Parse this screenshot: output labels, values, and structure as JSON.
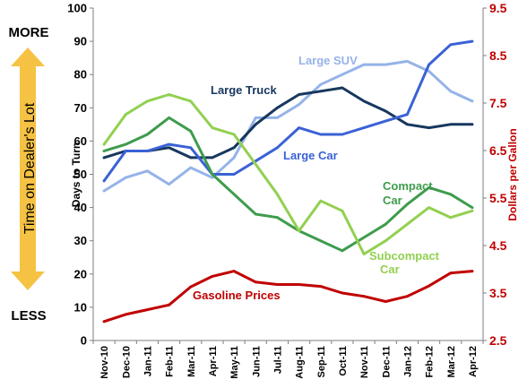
{
  "chart_data": {
    "type": "line",
    "categories": [
      "Nov-10",
      "Dec-10",
      "Jan-11",
      "Feb-11",
      "Mar-11",
      "Apr-11",
      "May-11",
      "Jun-11",
      "Jul-11",
      "Aug-11",
      "Sep-11",
      "Oct-11",
      "Nov-11",
      "Dec-11",
      "Jan-12",
      "Feb-12",
      "Mar-12",
      "Apr-12"
    ],
    "ylabel_left": "Days to Turn",
    "ylabel_right": "Dollars per Gallon",
    "ylim_left": [
      0,
      100
    ],
    "ylim_right": [
      2.5,
      9.5
    ],
    "yticks_left": [
      "0",
      "10",
      "20",
      "30",
      "40",
      "50",
      "60",
      "70",
      "80",
      "90",
      "100"
    ],
    "yticks_right": [
      "2.5",
      "3.5",
      "4.5",
      "5.5",
      "6.5",
      "7.5",
      "8.5",
      "9.5"
    ],
    "grid": false,
    "series": [
      {
        "name": "Large SUV",
        "axis": "left",
        "color": "#95b3e8",
        "values": [
          45,
          49,
          51,
          47,
          52,
          49,
          55,
          67,
          67,
          71,
          77,
          80,
          83,
          83,
          84,
          81,
          75,
          72
        ]
      },
      {
        "name": "Large Truck",
        "axis": "left",
        "color": "#17375e",
        "values": [
          55,
          57,
          57,
          58,
          55,
          55,
          58,
          65,
          70,
          74,
          75,
          76,
          72,
          69,
          65,
          64,
          65,
          65
        ]
      },
      {
        "name": "Large Car",
        "axis": "left",
        "color": "#3a62d6",
        "values": [
          48,
          57,
          57,
          59,
          58,
          50,
          50,
          54,
          58,
          64,
          62,
          62,
          64,
          66,
          68,
          83,
          89,
          90
        ]
      },
      {
        "name": "Compact Car",
        "axis": "left",
        "color": "#3e9c4c",
        "values": [
          57,
          59,
          62,
          67,
          63,
          50,
          44,
          38,
          37,
          33,
          30,
          27,
          31,
          35,
          41,
          46,
          44,
          40
        ]
      },
      {
        "name": "Subcompact Car",
        "axis": "left",
        "color": "#92d050",
        "values": [
          59,
          68,
          72,
          74,
          72,
          64,
          62,
          53,
          44,
          33,
          42,
          39,
          26,
          30,
          35,
          40,
          37,
          39
        ]
      },
      {
        "name": "Gasoline Prices",
        "axis": "right",
        "color": "#c00000",
        "values": [
          2.9,
          3.05,
          3.15,
          3.25,
          3.63,
          3.85,
          3.96,
          3.73,
          3.68,
          3.68,
          3.64,
          3.5,
          3.43,
          3.32,
          3.43,
          3.65,
          3.92,
          3.96
        ]
      }
    ],
    "annotations": {
      "large_suv": "Large SUV",
      "large_truck": "Large Truck",
      "large_car": "Large Car",
      "compact_line1": "Compact",
      "compact_line2": "Car",
      "subcompact_line1": "Subcompact",
      "subcompact_line2": "Car",
      "gasoline": "Gasoline Prices"
    },
    "side_arrow": {
      "top_label": "MORE",
      "bottom_label": "LESS",
      "text": "Time on Dealer's Lot",
      "color": "#f5c243"
    }
  }
}
